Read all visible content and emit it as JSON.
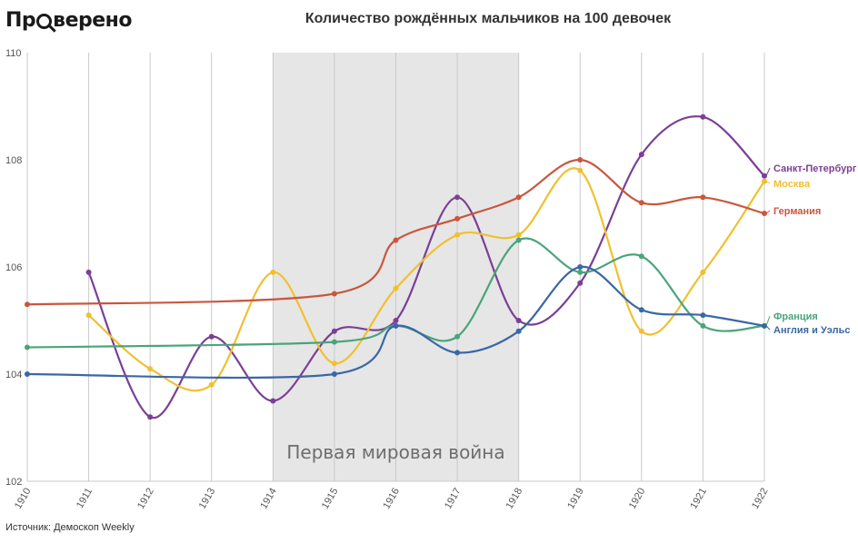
{
  "logo": {
    "before": "Пр",
    "after": "верено"
  },
  "source": "Источник: Демоскоп Weekly",
  "chart_data": {
    "type": "line",
    "title": "Количество рождённых мальчиков на 100 девочек",
    "xlabel": "",
    "ylabel": "",
    "ylim": [
      102,
      110
    ],
    "yticks": [
      102,
      104,
      106,
      108,
      110
    ],
    "x": [
      1910,
      1911,
      1912,
      1913,
      1914,
      1915,
      1916,
      1917,
      1918,
      1919,
      1920,
      1921,
      1922
    ],
    "grid": "vertical",
    "shaded_region": {
      "from": 1914,
      "to": 1918,
      "label": "Первая мировая война",
      "color": "#e6e6e6"
    },
    "series": [
      {
        "name": "Санкт-Петербург",
        "color": "#7b3f95",
        "values": [
          null,
          105.9,
          103.2,
          104.7,
          103.5,
          104.8,
          105.0,
          107.3,
          105.0,
          105.7,
          108.1,
          108.8,
          107.7
        ]
      },
      {
        "name": "Москва",
        "color": "#f0c030",
        "values": [
          null,
          105.1,
          104.1,
          103.8,
          105.9,
          104.2,
          105.6,
          106.6,
          106.6,
          107.8,
          104.8,
          105.9,
          107.6
        ]
      },
      {
        "name": "Германия",
        "color": "#c8573e",
        "values": [
          105.3,
          null,
          null,
          null,
          null,
          105.5,
          106.5,
          106.9,
          107.3,
          108.0,
          107.2,
          107.3,
          107.0
        ]
      },
      {
        "name": "Франция",
        "color": "#4aa47c",
        "values": [
          104.5,
          null,
          null,
          null,
          null,
          104.6,
          104.9,
          104.7,
          106.5,
          105.9,
          106.2,
          104.9,
          104.9
        ]
      },
      {
        "name": "Англия и Уэльс",
        "color": "#3a67a6",
        "values": [
          104.0,
          null,
          null,
          null,
          null,
          104.0,
          104.9,
          104.4,
          104.8,
          106.0,
          105.2,
          105.1,
          104.9
        ]
      }
    ]
  }
}
